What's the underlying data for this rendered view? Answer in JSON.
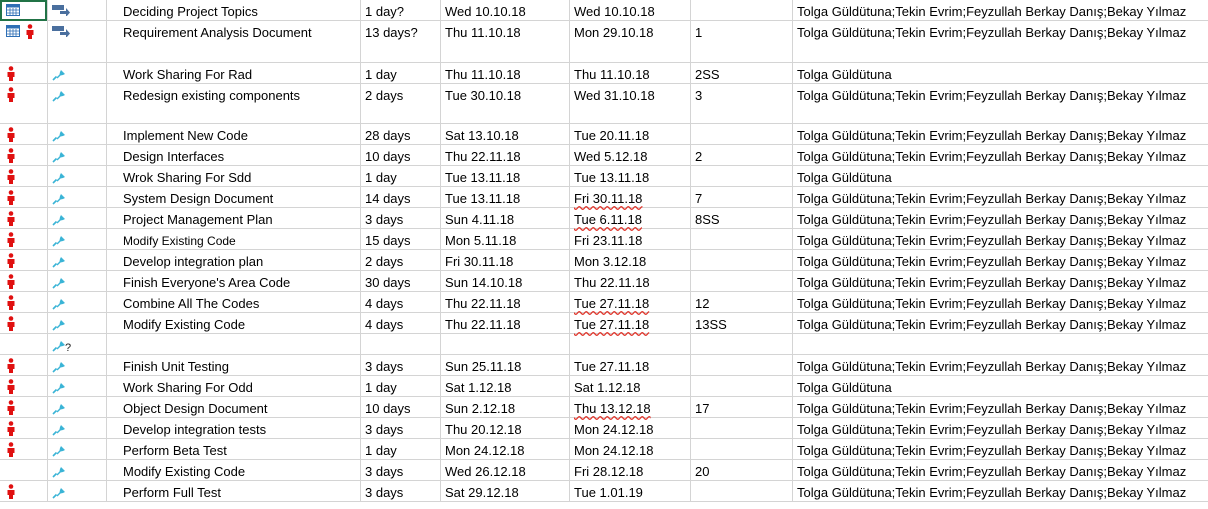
{
  "colors": {
    "grid_line": "#d4d4d4",
    "person_icon": "#e01010",
    "pin_icon": "#3ab4d6",
    "calendar_icon": "#2e6fb5",
    "squiggle": "#e0352b",
    "selection": "#217346"
  },
  "tasks": [
    {
      "ind1": [
        "calendar-icon"
      ],
      "ind2": "auto-schedule-icon",
      "name": "Deciding Project Topics",
      "duration": "1 day?",
      "start": "Wed 10.10.18",
      "finish": "Wed 10.10.18",
      "predecessors": "",
      "resources": "Tolga Güldütuna;Tekin Evrim;Feyzullah Berkay Danış;Bekay Yılmaz"
    },
    {
      "ind1": [
        "calendar-icon",
        "person-icon"
      ],
      "ind2": "auto-schedule-icon",
      "name": "Requirement Analysis Document",
      "duration": "13 days?",
      "start": "Thu 11.10.18",
      "finish": "Mon 29.10.18",
      "predecessors": "1",
      "resources": "Tolga Güldütuna;Tekin Evrim;Feyzullah Berkay Danış;Bekay Yılmaz"
    },
    {
      "ind1": [
        "person-icon"
      ],
      "ind2": "pin-icon",
      "name": "Work Sharing For Rad",
      "duration": "1 day",
      "start": "Thu 11.10.18",
      "finish": "Thu 11.10.18",
      "predecessors": "2SS",
      "resources": "Tolga Güldütuna"
    },
    {
      "ind1": [
        "person-icon"
      ],
      "ind2": "pin-icon",
      "name": "Redesign existing components",
      "duration": "2 days",
      "start": "Tue 30.10.18",
      "finish": "Wed 31.10.18",
      "predecessors": "3",
      "resources": "Tolga Güldütuna;Tekin Evrim;Feyzullah Berkay Danış;Bekay Yılmaz"
    },
    {
      "ind1": [
        "person-icon"
      ],
      "ind2": "pin-icon",
      "name": "Implement New Code",
      "duration": "28 days",
      "start": "Sat 13.10.18",
      "finish": "Tue 20.11.18",
      "predecessors": "",
      "resources": "Tolga Güldütuna;Tekin Evrim;Feyzullah Berkay Danış;Bekay Yılmaz"
    },
    {
      "ind1": [
        "person-icon"
      ],
      "ind2": "pin-icon",
      "name": "Design Interfaces",
      "duration": "10 days",
      "start": "Thu 22.11.18",
      "finish": "Wed 5.12.18",
      "predecessors": "2",
      "resources": "Tolga Güldütuna;Tekin Evrim;Feyzullah Berkay Danış;Bekay Yılmaz"
    },
    {
      "ind1": [
        "person-icon"
      ],
      "ind2": "pin-icon",
      "name": "Wrok Sharing For Sdd",
      "duration": "1 day",
      "start": "Tue 13.11.18",
      "finish": "Tue 13.11.18",
      "predecessors": "",
      "resources": "Tolga Güldütuna"
    },
    {
      "ind1": [
        "person-icon"
      ],
      "ind2": "pin-icon",
      "name": "System Design Document",
      "duration": "14 days",
      "start": "Tue 13.11.18",
      "finish": "Fri 30.11.18",
      "finish_flag": "squiggle",
      "predecessors": "7",
      "resources": "Tolga Güldütuna;Tekin Evrim;Feyzullah Berkay Danış;Bekay Yılmaz"
    },
    {
      "ind1": [
        "person-icon"
      ],
      "ind2": "pin-icon",
      "name": "Project Management Plan",
      "duration": "3 days",
      "start": "Sun 4.11.18",
      "finish": "Tue 6.11.18",
      "finish_flag": "squiggle",
      "predecessors": "8SS",
      "resources": "Tolga Güldütuna;Tekin Evrim;Feyzullah Berkay Danış;Bekay Yılmaz"
    },
    {
      "ind1": [
        "person-icon"
      ],
      "ind2": "pin-icon",
      "name": "Modify Existing Code",
      "name_flag": "small",
      "duration": "15 days",
      "start": "Mon 5.11.18",
      "finish": "Fri 23.11.18",
      "predecessors": "",
      "resources": "Tolga Güldütuna;Tekin Evrim;Feyzullah Berkay Danış;Bekay Yılmaz"
    },
    {
      "ind1": [
        "person-icon"
      ],
      "ind2": "pin-icon",
      "name": "Develop integration plan",
      "duration": "2 days",
      "start": "Fri 30.11.18",
      "finish": "Mon 3.12.18",
      "predecessors": "",
      "resources": "Tolga Güldütuna;Tekin Evrim;Feyzullah Berkay Danış;Bekay Yılmaz"
    },
    {
      "ind1": [
        "person-icon"
      ],
      "ind2": "pin-icon",
      "name": "Finish Everyone's Area Code",
      "duration": "30 days",
      "start": "Sun 14.10.18",
      "finish": "Thu 22.11.18",
      "predecessors": "",
      "resources": "Tolga Güldütuna;Tekin Evrim;Feyzullah Berkay Danış;Bekay Yılmaz"
    },
    {
      "ind1": [
        "person-icon"
      ],
      "ind2": "pin-icon",
      "name": "Combine All The Codes",
      "duration": "4 days",
      "start": "Thu 22.11.18",
      "finish": "Tue 27.11.18",
      "finish_flag": "squiggle",
      "predecessors": "12",
      "resources": "Tolga Güldütuna;Tekin Evrim;Feyzullah Berkay Danış;Bekay Yılmaz"
    },
    {
      "ind1": [
        "person-icon"
      ],
      "ind2": "pin-icon",
      "name": "Modify Existing Code",
      "duration": "4 days",
      "start": "Thu 22.11.18",
      "finish": "Tue 27.11.18",
      "finish_flag": "squiggle",
      "predecessors": "13SS",
      "resources": "Tolga Güldütuna;Tekin Evrim;Feyzullah Berkay Danış;Bekay Yılmaz"
    },
    {
      "ind1": [],
      "ind2": "pin-question-icon",
      "name": "",
      "duration": "",
      "start": "",
      "finish": "",
      "predecessors": "",
      "resources": ""
    },
    {
      "ind1": [
        "person-icon"
      ],
      "ind2": "pin-icon",
      "name": "Finish Unit Testing",
      "duration": "3 days",
      "start": "Sun 25.11.18",
      "finish": "Tue 27.11.18",
      "predecessors": "",
      "resources": "Tolga Güldütuna;Tekin Evrim;Feyzullah Berkay Danış;Bekay Yılmaz"
    },
    {
      "ind1": [
        "person-icon"
      ],
      "ind2": "pin-icon",
      "name": "Work Sharing For Odd",
      "duration": "1 day",
      "start": "Sat 1.12.18",
      "finish": "Sat 1.12.18",
      "predecessors": "",
      "resources": "Tolga Güldütuna"
    },
    {
      "ind1": [
        "person-icon"
      ],
      "ind2": "pin-icon",
      "name": "Object Design Document",
      "duration": "10 days",
      "start": "Sun 2.12.18",
      "finish": "Thu 13.12.18",
      "finish_flag": "squiggle",
      "predecessors": "17",
      "resources": "Tolga Güldütuna;Tekin Evrim;Feyzullah Berkay Danış;Bekay Yılmaz"
    },
    {
      "ind1": [
        "person-icon"
      ],
      "ind2": "pin-icon",
      "name": "Develop integration tests",
      "duration": "3 days",
      "start": "Thu 20.12.18",
      "finish": "Mon 24.12.18",
      "predecessors": "",
      "resources": "Tolga Güldütuna;Tekin Evrim;Feyzullah Berkay Danış;Bekay Yılmaz"
    },
    {
      "ind1": [
        "person-icon"
      ],
      "ind2": "pin-icon",
      "name": "Perform Beta Test",
      "duration": "1 day",
      "start": "Mon 24.12.18",
      "finish": "Mon 24.12.18",
      "predecessors": "",
      "resources": "Tolga Güldütuna;Tekin Evrim;Feyzullah Berkay Danış;Bekay Yılmaz"
    },
    {
      "ind1": [],
      "ind2": "pin-icon",
      "name": "Modify Existing Code",
      "duration": "3 days",
      "start": "Wed 26.12.18",
      "finish": "Fri 28.12.18",
      "predecessors": "20",
      "resources": "Tolga Güldütuna;Tekin Evrim;Feyzullah Berkay Danış;Bekay Yılmaz"
    },
    {
      "ind1": [
        "person-icon"
      ],
      "ind2": "pin-icon",
      "name": "Perform Full Test",
      "duration": "3 days",
      "start": "Sat 29.12.18",
      "finish": "Tue 1.01.19",
      "predecessors": "",
      "resources": "Tolga Güldütuna;Tekin Evrim;Feyzullah Berkay Danış;Bekay Yılmaz"
    }
  ]
}
